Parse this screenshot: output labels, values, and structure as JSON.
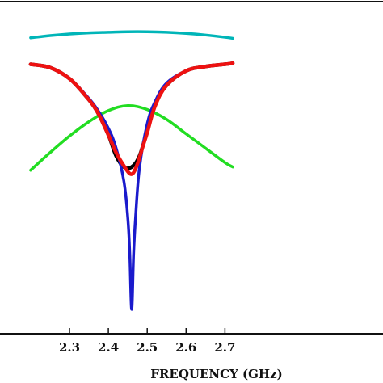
{
  "chart_data": {
    "type": "line",
    "xlabel": "FREQUENCY (GHz)",
    "ylabel": "",
    "title": "",
    "xlim": [
      2.2,
      2.72
    ],
    "ylim": [
      -30,
      0
    ],
    "grid": false,
    "legend": "none",
    "x_ticks": [
      "2.3",
      "2.4",
      "2.5",
      "2.6",
      "2.7"
    ],
    "series": [
      {
        "color": "#00b5b8",
        "stroke": 3.5,
        "x": [
          2.2,
          2.25,
          2.3,
          2.35,
          2.4,
          2.45,
          2.5,
          2.55,
          2.6,
          2.65,
          2.7,
          2.72
        ],
        "y": [
          -3.2,
          -3.0,
          -2.85,
          -2.75,
          -2.7,
          -2.65,
          -2.65,
          -2.7,
          -2.8,
          -2.95,
          -3.15,
          -3.25
        ]
      },
      {
        "color": "#22dd22",
        "stroke": 3.5,
        "x": [
          2.2,
          2.25,
          2.3,
          2.35,
          2.4,
          2.45,
          2.5,
          2.55,
          2.6,
          2.65,
          2.7,
          2.72
        ],
        "y": [
          -15.2,
          -13.6,
          -12.1,
          -10.8,
          -9.8,
          -9.35,
          -9.7,
          -10.6,
          -11.9,
          -13.2,
          -14.5,
          -14.9
        ]
      },
      {
        "color": "#000000",
        "stroke": 4.5,
        "x": [
          2.2,
          2.25,
          2.3,
          2.34,
          2.37,
          2.4,
          2.42,
          2.44,
          2.46,
          2.48,
          2.5,
          2.52,
          2.55,
          2.6,
          2.65,
          2.7,
          2.72
        ],
        "y": [
          -5.6,
          -5.9,
          -6.9,
          -8.4,
          -9.8,
          -12.0,
          -13.9,
          -14.9,
          -14.9,
          -13.9,
          -11.6,
          -9.3,
          -7.5,
          -6.2,
          -5.8,
          -5.6,
          -5.5
        ]
      },
      {
        "color": "#1a1acc",
        "stroke": 3.5,
        "x": [
          2.2,
          2.25,
          2.3,
          2.34,
          2.37,
          2.4,
          2.42,
          2.44,
          2.45,
          2.455,
          2.46,
          2.465,
          2.47,
          2.48,
          2.5,
          2.52,
          2.55,
          2.6,
          2.65,
          2.7,
          2.72
        ],
        "y": [
          -5.6,
          -5.9,
          -6.9,
          -8.3,
          -9.6,
          -11.4,
          -13.2,
          -16.2,
          -19.5,
          -22.7,
          -27.8,
          -22.7,
          -19.5,
          -15.0,
          -11.0,
          -9.0,
          -7.3,
          -6.2,
          -5.8,
          -5.6,
          -5.5
        ]
      },
      {
        "color": "#ee1111",
        "stroke": 4.5,
        "x": [
          2.2,
          2.25,
          2.3,
          2.34,
          2.37,
          2.4,
          2.42,
          2.44,
          2.455,
          2.465,
          2.475,
          2.49,
          2.5,
          2.52,
          2.55,
          2.6,
          2.65,
          2.7,
          2.72
        ],
        "y": [
          -5.6,
          -5.9,
          -6.9,
          -8.4,
          -9.8,
          -12.0,
          -13.6,
          -14.8,
          -15.5,
          -15.4,
          -14.6,
          -12.9,
          -11.8,
          -9.4,
          -7.5,
          -6.2,
          -5.8,
          -5.6,
          -5.5
        ]
      }
    ]
  }
}
